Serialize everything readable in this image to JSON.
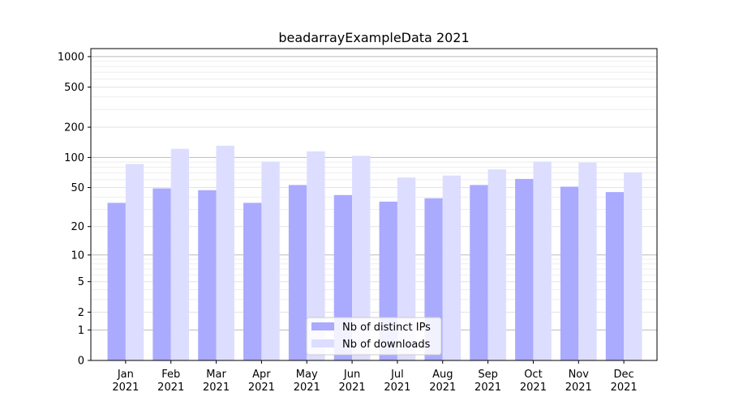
{
  "chart_data": {
    "type": "bar",
    "title": "beadarrayExampleData 2021",
    "xlabel": "",
    "ylabel": "",
    "y_scale": "log1p",
    "ylim": [
      0,
      1200
    ],
    "grid": true,
    "legend_position": "bottom-center",
    "categories": [
      {
        "month": "Jan",
        "year": "2021"
      },
      {
        "month": "Feb",
        "year": "2021"
      },
      {
        "month": "Mar",
        "year": "2021"
      },
      {
        "month": "Apr",
        "year": "2021"
      },
      {
        "month": "May",
        "year": "2021"
      },
      {
        "month": "Jun",
        "year": "2021"
      },
      {
        "month": "Jul",
        "year": "2021"
      },
      {
        "month": "Aug",
        "year": "2021"
      },
      {
        "month": "Sep",
        "year": "2021"
      },
      {
        "month": "Oct",
        "year": "2021"
      },
      {
        "month": "Nov",
        "year": "2021"
      },
      {
        "month": "Dec",
        "year": "2021"
      }
    ],
    "y_ticks": [
      0,
      1,
      2,
      5,
      10,
      20,
      50,
      100,
      200,
      500,
      1000
    ],
    "series": [
      {
        "name": "Nb of distinct IPs",
        "color": "#aaaaff",
        "values": [
          35,
          49,
          47,
          35,
          53,
          42,
          36,
          39,
          53,
          61,
          51,
          45
        ]
      },
      {
        "name": "Nb of downloads",
        "color": "#ddddff",
        "values": [
          86,
          122,
          131,
          91,
          115,
          104,
          63,
          66,
          76,
          91,
          89,
          71
        ]
      }
    ]
  }
}
